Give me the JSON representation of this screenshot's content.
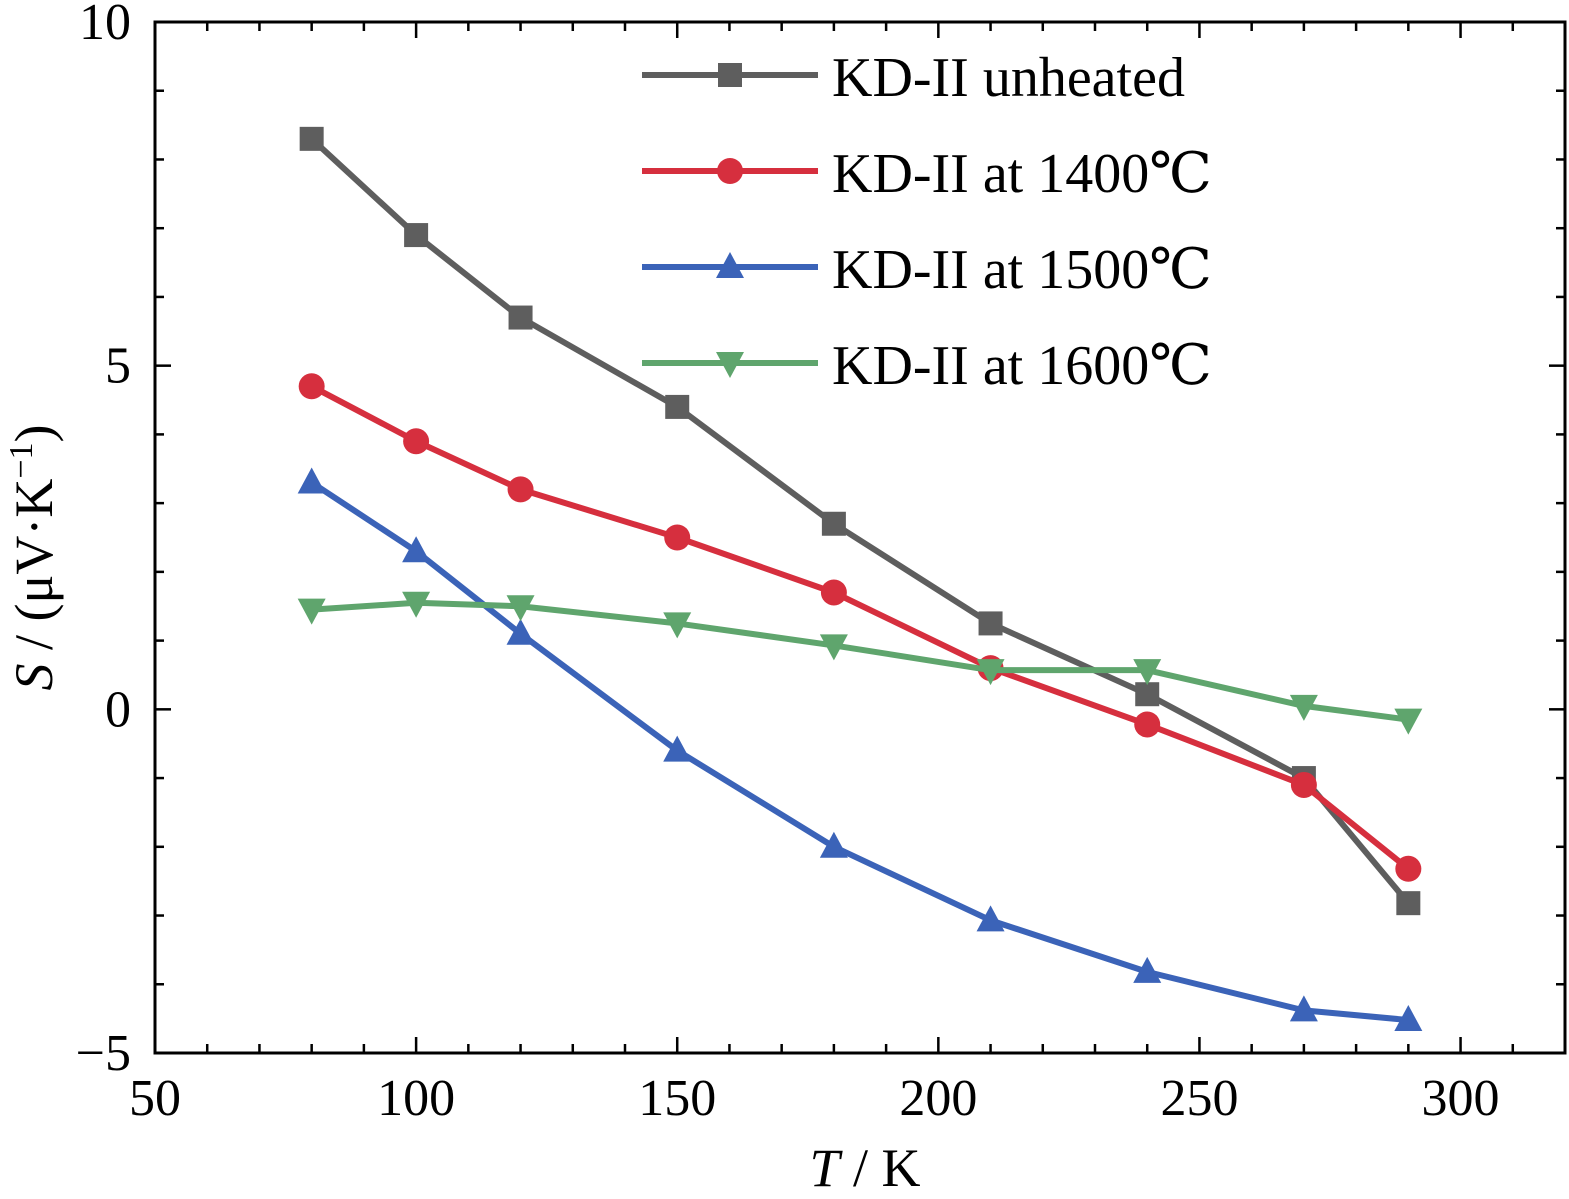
{
  "chart_data": {
    "type": "line",
    "xlabel": {
      "italic": "T",
      "rest": " / K"
    },
    "ylabel": {
      "italic": "S",
      "rest": " / (μV·K",
      "sup": "−1",
      "close": ")"
    },
    "xlim": [
      50,
      320
    ],
    "ylim": [
      -5,
      10
    ],
    "xticks": [
      50,
      100,
      150,
      200,
      250,
      300
    ],
    "xtick_labels": [
      "50",
      "100",
      "150",
      "200",
      "250",
      "300"
    ],
    "yticks": [
      -5,
      0,
      5,
      10
    ],
    "ytick_labels": [
      "−5",
      "0",
      "5",
      "10"
    ],
    "x": [
      80,
      100,
      120,
      150,
      180,
      210,
      240,
      270,
      290
    ],
    "series": [
      {
        "name": "KD-II unheated",
        "color": "#5e5e5e",
        "marker": "square",
        "values": [
          8.3,
          6.9,
          5.7,
          4.4,
          2.7,
          1.25,
          0.22,
          -1.0,
          -2.82
        ]
      },
      {
        "name": "KD-II at 1400℃",
        "color": "#d62f3e",
        "marker": "circle",
        "values": [
          4.7,
          3.9,
          3.2,
          2.5,
          1.7,
          0.6,
          -0.22,
          -1.1,
          -2.32
        ]
      },
      {
        "name": "KD-II at 1500℃",
        "color": "#3b63b8",
        "marker": "triangle-up",
        "values": [
          3.3,
          2.3,
          1.1,
          -0.6,
          -2.0,
          -3.07,
          -3.82,
          -4.38,
          -4.52
        ]
      },
      {
        "name": "KD-II at 1600℃",
        "color": "#5fa56d",
        "marker": "triangle-down",
        "values": [
          1.45,
          1.55,
          1.5,
          1.25,
          0.93,
          0.57,
          0.57,
          0.05,
          -0.15
        ]
      }
    ],
    "legend_position": "top-right",
    "grid": false
  }
}
